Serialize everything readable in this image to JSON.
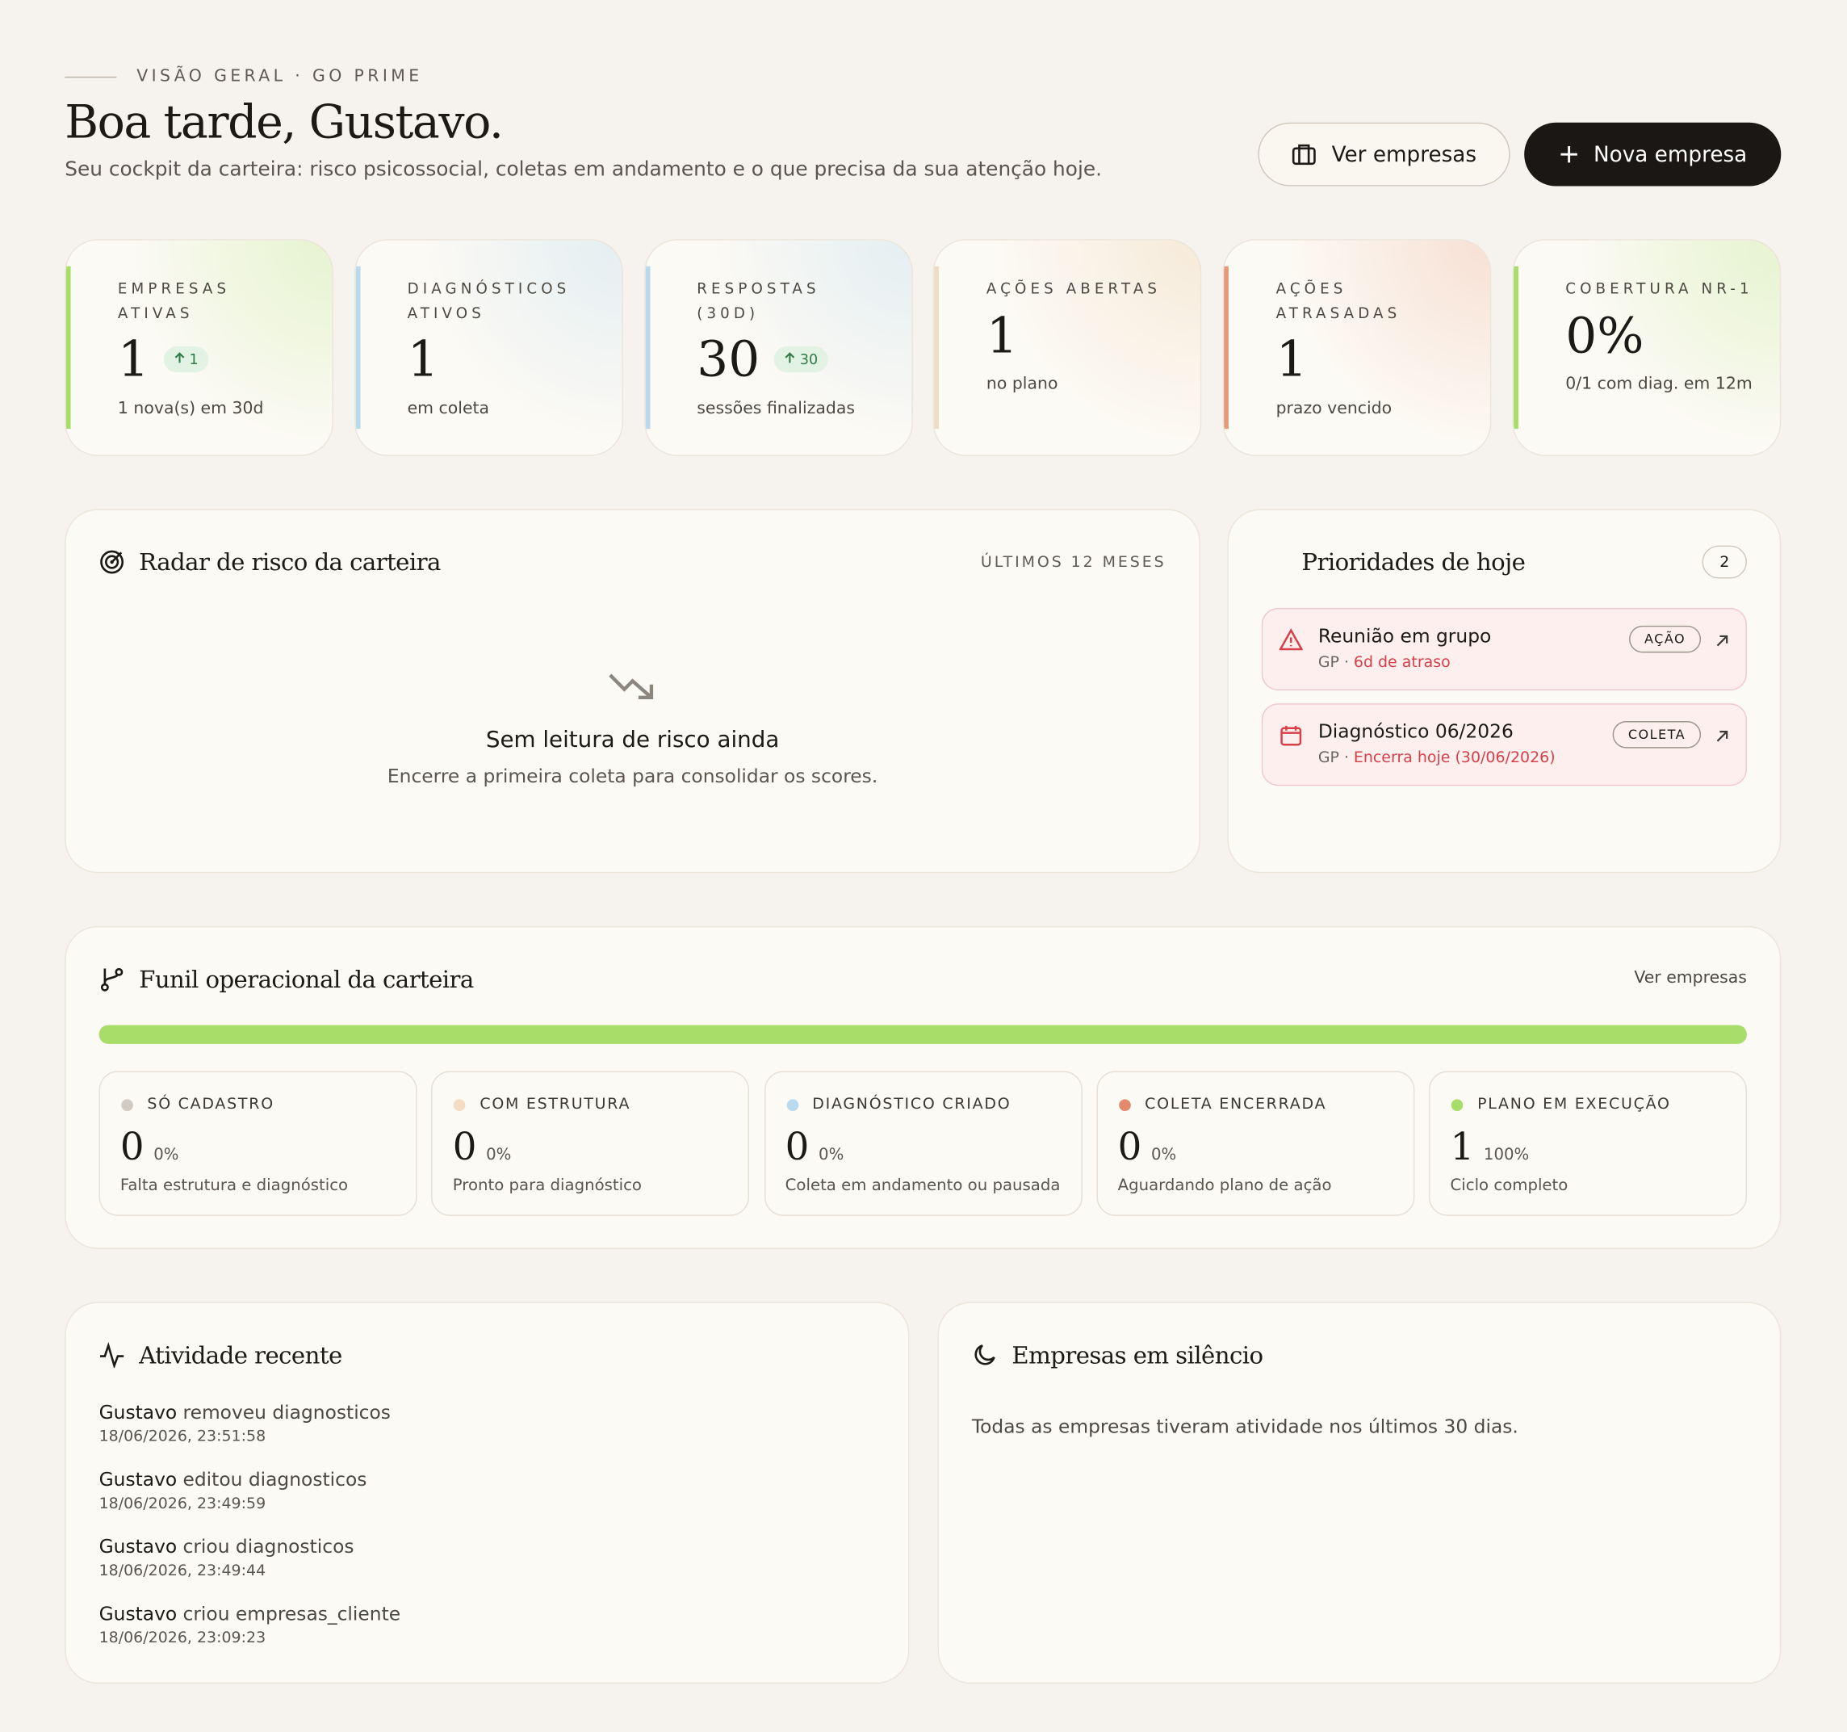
{
  "header": {
    "eyebrow": "VISÃO GERAL · GO PRIME",
    "title": "Boa tarde, Gustavo.",
    "subtitle": "Seu cockpit da carteira: risco psicossocial, coletas em andamento e o que precisa da sua atenção hoje.",
    "buttons": [
      "Ver empresas",
      "Nova empresa"
    ]
  },
  "kpis": [
    {
      "label": "EMPRESAS ATIVAS",
      "value": "1",
      "delta": "1",
      "note": "1 nova(s) em 30d"
    },
    {
      "label": "DIAGNÓSTICOS ATIVOS",
      "value": "1",
      "note": "em coleta"
    },
    {
      "label": "RESPOSTAS (30D)",
      "value": "30",
      "delta": "30",
      "note": "sessões finalizadas"
    },
    {
      "label": "AÇÕES ABERTAS",
      "value": "1",
      "note": "no plano"
    },
    {
      "label": "AÇÕES ATRASADAS",
      "value": "1",
      "note": "prazo vencido"
    },
    {
      "label": "COBERTURA NR-1",
      "value": "0%",
      "note": "0/1 com diag. em 12m"
    }
  ],
  "radar": {
    "title": "Radar de risco da carteira",
    "period": "ÚLTIMOS 12 MESES",
    "empty_title": "Sem leitura de risco ainda",
    "empty_text": "Encerre a primeira coleta para consolidar os scores."
  },
  "priorities": {
    "title": "Prioridades de hoje",
    "count": "2",
    "items": [
      {
        "title": "Reunião em grupo",
        "org": "GP ·",
        "status": "6d de atraso",
        "tag": "AÇÃO"
      },
      {
        "title": "Diagnóstico 06/2026",
        "org": "GP ·",
        "status": "Encerra hoje (30/06/2026)",
        "tag": "COLETA"
      }
    ]
  },
  "funnel": {
    "title": "Funil operacional da carteira",
    "link": "Ver empresas",
    "stages": [
      {
        "label": "SÓ CADASTRO",
        "count": "0",
        "pct": "0%",
        "note": "Falta estrutura e diagnóstico"
      },
      {
        "label": "COM ESTRUTURA",
        "count": "0",
        "pct": "0%",
        "note": "Pronto para diagnóstico"
      },
      {
        "label": "DIAGNÓSTICO CRIADO",
        "count": "0",
        "pct": "0%",
        "note": "Coleta em andamento ou pausada"
      },
      {
        "label": "COLETA ENCERRADA",
        "count": "0",
        "pct": "0%",
        "note": "Aguardando plano de ação"
      },
      {
        "label": "PLANO EM EXECUÇÃO",
        "count": "1",
        "pct": "100%",
        "note": "Ciclo completo"
      }
    ]
  },
  "activity": {
    "title": "Atividade recente",
    "items": [
      {
        "user": "Gustavo",
        "action": "removeu diagnosticos",
        "time": "18/06/2026, 23:51:58"
      },
      {
        "user": "Gustavo",
        "action": "editou diagnosticos",
        "time": "18/06/2026, 23:49:59"
      },
      {
        "user": "Gustavo",
        "action": "criou diagnosticos",
        "time": "18/06/2026, 23:49:44"
      },
      {
        "user": "Gustavo",
        "action": "criou empresas_cliente",
        "time": "18/06/2026, 23:09:23"
      }
    ]
  },
  "silence": {
    "title": "Empresas em silêncio",
    "text": "Todas as empresas tiveram atividade nos últimos 30 dias."
  }
}
